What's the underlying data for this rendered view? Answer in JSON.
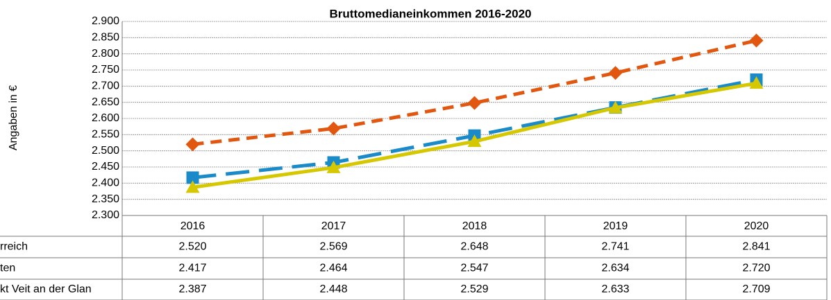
{
  "chart_data": {
    "type": "line",
    "title": "Bruttomedianeinkommen 2016-2020",
    "ylabel": "Angaben in €",
    "categories": [
      "2016",
      "2017",
      "2018",
      "2019",
      "2020"
    ],
    "series": [
      {
        "name": "rreich",
        "color": "#e2570f",
        "marker": "diamond",
        "dash": "short",
        "values": [
          2520,
          2569,
          2648,
          2741,
          2841
        ],
        "value_labels": [
          "2.520",
          "2.569",
          "2.648",
          "2.741",
          "2.841"
        ]
      },
      {
        "name": "ten",
        "color": "#1a8bc8",
        "marker": "square",
        "dash": "long",
        "values": [
          2417,
          2464,
          2547,
          2634,
          2720
        ],
        "value_labels": [
          "2.417",
          "2.464",
          "2.547",
          "2.634",
          "2.720"
        ]
      },
      {
        "name": "kt Veit an der Glan",
        "color": "#d6c800",
        "marker": "triangle",
        "dash": "solid",
        "values": [
          2387,
          2448,
          2529,
          2633,
          2709
        ],
        "value_labels": [
          "2.387",
          "2.448",
          "2.529",
          "2.633",
          "2.709"
        ]
      }
    ],
    "ylim": [
      2300,
      2900
    ],
    "yticks": [
      {
        "value": 2300,
        "label": "2.300"
      },
      {
        "value": 2350,
        "label": "2.350"
      },
      {
        "value": 2400,
        "label": "2.400"
      },
      {
        "value": 2450,
        "label": "2.450"
      },
      {
        "value": 2500,
        "label": "2.500"
      },
      {
        "value": 2550,
        "label": "2.550"
      },
      {
        "value": 2600,
        "label": "2.600"
      },
      {
        "value": 2650,
        "label": "2.650"
      },
      {
        "value": 2700,
        "label": "2.700"
      },
      {
        "value": 2750,
        "label": "2.750"
      },
      {
        "value": 2800,
        "label": "2.800"
      },
      {
        "value": 2850,
        "label": "2.850"
      },
      {
        "value": 2900,
        "label": "2.900"
      }
    ],
    "grid": true
  }
}
